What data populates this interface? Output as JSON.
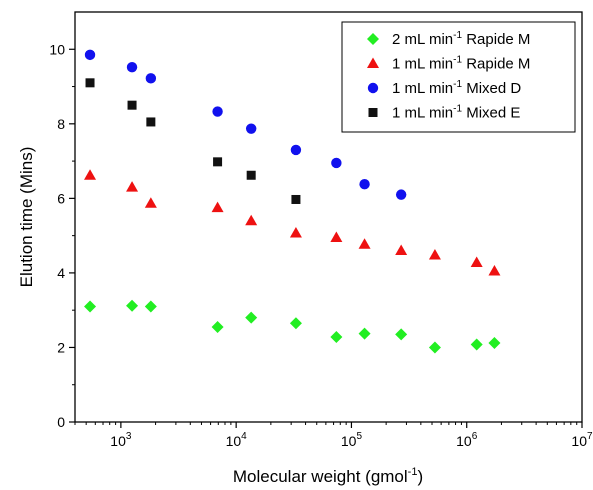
{
  "chart_data": {
    "type": "scatter",
    "title": "",
    "xlabel": {
      "main": "Molecular weight (gmol",
      "sup": "-1",
      "tail": ")"
    },
    "ylabel": "Elution time (Mins)",
    "xscale": "log",
    "xlim": [
      400,
      10000000
    ],
    "ylim": [
      0,
      11
    ],
    "x_ticks": [
      {
        "value": 1000,
        "base": "10",
        "exp": "3"
      },
      {
        "value": 10000,
        "base": "10",
        "exp": "4"
      },
      {
        "value": 100000,
        "base": "10",
        "exp": "5"
      },
      {
        "value": 1000000,
        "base": "10",
        "exp": "6"
      },
      {
        "value": 10000000,
        "base": "10",
        "exp": "7"
      }
    ],
    "y_ticks": [
      "0",
      "2",
      "4",
      "6",
      "8",
      "10"
    ],
    "grid": false,
    "legend_position": "top-right",
    "series": [
      {
        "name": {
          "pre": "2 mL min",
          "sup": "-1",
          "post": " Rapide M"
        },
        "color": "#22ee22",
        "marker": "diamond",
        "x": [
          540,
          1250,
          1820,
          6900,
          13500,
          33000,
          74000,
          130000,
          270000,
          530000,
          1220000,
          1740000
        ],
        "y": [
          3.1,
          3.12,
          3.1,
          2.55,
          2.8,
          2.65,
          2.28,
          2.37,
          2.35,
          2.0,
          2.08,
          2.12
        ]
      },
      {
        "name": {
          "pre": "1 mL min",
          "sup": "-1",
          "post": " Rapide M"
        },
        "color": "#ee1111",
        "marker": "triangle",
        "x": [
          540,
          1250,
          1820,
          6900,
          13500,
          33000,
          74000,
          130000,
          270000,
          530000,
          1220000,
          1740000
        ],
        "y": [
          6.62,
          6.3,
          5.87,
          5.75,
          5.4,
          5.07,
          4.95,
          4.77,
          4.6,
          4.48,
          4.28,
          4.05
        ]
      },
      {
        "name": {
          "pre": "1 mL min",
          "sup": "-1",
          "post": " Mixed D"
        },
        "color": "#1111ee",
        "marker": "circle",
        "x": [
          540,
          1250,
          1820,
          6900,
          13500,
          33000,
          74000,
          130000,
          270000
        ],
        "y": [
          9.85,
          9.52,
          9.22,
          8.33,
          7.87,
          7.3,
          6.95,
          6.38,
          6.1
        ]
      },
      {
        "name": {
          "pre": "1 mL min",
          "sup": "-1",
          "post": " Mixed E"
        },
        "color": "#111111",
        "marker": "square",
        "x": [
          540,
          1250,
          1820,
          6900,
          13500,
          33000
        ],
        "y": [
          9.1,
          8.5,
          8.05,
          6.98,
          6.62,
          5.97
        ]
      }
    ]
  }
}
